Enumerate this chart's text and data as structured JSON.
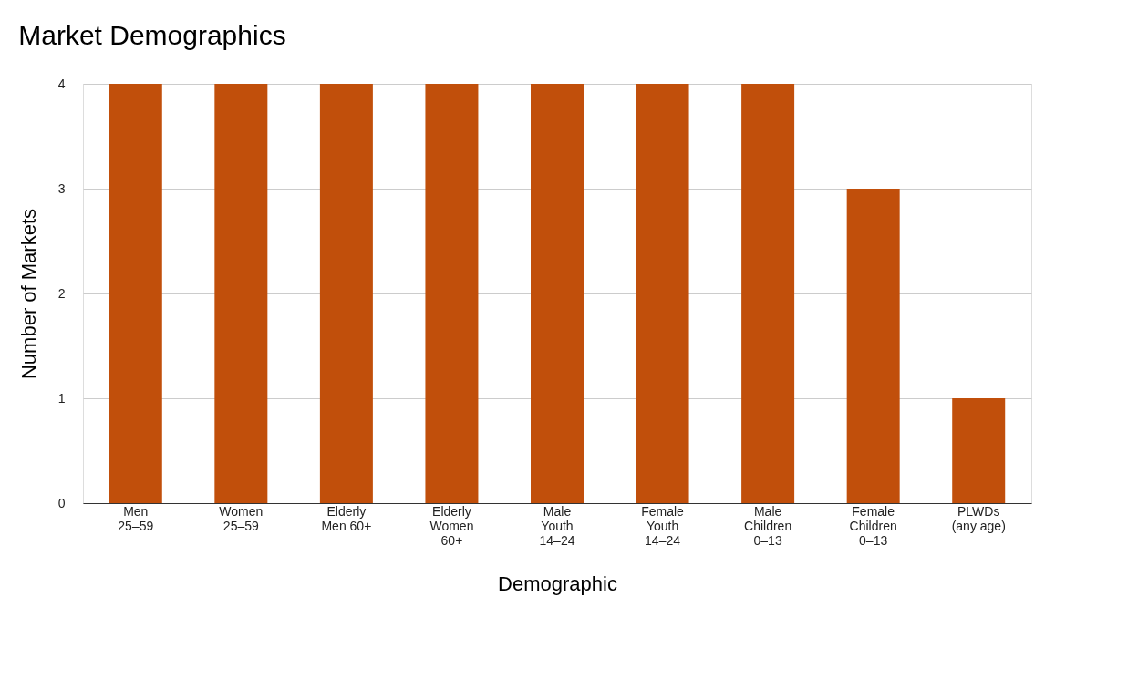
{
  "chart_data": {
    "type": "bar",
    "title": "Market Demographics",
    "xlabel": "Demographic",
    "ylabel": "Number of Markets",
    "categories": [
      "Men\n25–59",
      "Women\n25–59",
      "Elderly\nMen 60+",
      "Elderly\nWomen\n60+",
      "Male\nYouth\n14–24",
      "Female\nYouth\n14–24",
      "Male\nChildren\n0–13",
      "Female\nChildren\n0–13",
      "PLWDs\n(any age)"
    ],
    "values": [
      4,
      4,
      4,
      4,
      4,
      4,
      4,
      3,
      1
    ],
    "color": "#c14f0b",
    "ylim": [
      0,
      4
    ],
    "yticks": [
      0,
      1,
      2,
      3,
      4
    ],
    "grid": "y"
  }
}
